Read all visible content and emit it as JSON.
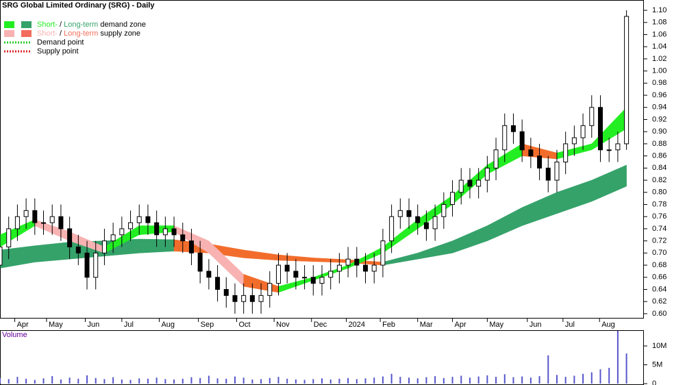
{
  "chart_data": {
    "type": "candlestick",
    "title": "SRG Global Limited Ordinary (SRG) - Daily",
    "legend": [
      {
        "short": "Short-",
        "sep": " / ",
        "long": "Long-term",
        "rest": " demand zone",
        "short_color": "#22ee22",
        "long_color": "#35a26a"
      },
      {
        "short": "Short-",
        "sep": " / ",
        "long": "Long-term",
        "rest": " supply zone",
        "short_color": "#f8b2b2",
        "long_color": "#f26d5c"
      },
      {
        "label": "Demand point",
        "color": "#22cc22"
      },
      {
        "label": "Supply point",
        "color": "#dd2222"
      }
    ],
    "volume_label": "Volume",
    "xlim": [
      0,
      74
    ],
    "xticks": [
      {
        "value": 1.7,
        "label": "Apr"
      },
      {
        "value": 5.35,
        "label": "May"
      },
      {
        "value": 9.8,
        "label": "Jun"
      },
      {
        "value": 14,
        "label": "Jul"
      },
      {
        "value": 18.3,
        "label": "Aug"
      },
      {
        "value": 22.8,
        "label": "Sep"
      },
      {
        "value": 27.2,
        "label": "Oct"
      },
      {
        "value": 31.5,
        "label": "Nov"
      },
      {
        "value": 35.8,
        "label": "Dec"
      },
      {
        "value": 39.8,
        "label": "2024"
      },
      {
        "value": 43.7,
        "label": "Feb"
      },
      {
        "value": 48,
        "label": "Mar"
      },
      {
        "value": 52,
        "label": "Apr"
      },
      {
        "value": 56,
        "label": "May"
      },
      {
        "value": 60.6,
        "label": "Jun"
      },
      {
        "value": 64.7,
        "label": "Jul"
      },
      {
        "value": 68.9,
        "label": "Aug"
      }
    ],
    "ylim": [
      0.592,
      1.117
    ],
    "yticks": [
      {
        "value": 0.6,
        "label": "0.60"
      },
      {
        "value": 0.62,
        "label": "0.62"
      },
      {
        "value": 0.64,
        "label": "0.64"
      },
      {
        "value": 0.66,
        "label": "0.66"
      },
      {
        "value": 0.68,
        "label": "0.68"
      },
      {
        "value": 0.7,
        "label": "0.70"
      },
      {
        "value": 0.72,
        "label": "0.72"
      },
      {
        "value": 0.74,
        "label": "0.74"
      },
      {
        "value": 0.76,
        "label": "0.76"
      },
      {
        "value": 0.78,
        "label": "0.78"
      },
      {
        "value": 0.8,
        "label": "0.80"
      },
      {
        "value": 0.82,
        "label": "0.82"
      },
      {
        "value": 0.84,
        "label": "0.84"
      },
      {
        "value": 0.86,
        "label": "0.86"
      },
      {
        "value": 0.88,
        "label": "0.88"
      },
      {
        "value": 0.9,
        "label": "0.90"
      },
      {
        "value": 0.92,
        "label": "0.92"
      },
      {
        "value": 0.94,
        "label": "0.94"
      },
      {
        "value": 0.96,
        "label": "0.96"
      },
      {
        "value": 0.98,
        "label": "0.98"
      },
      {
        "value": 1.0,
        "label": "1.00"
      },
      {
        "value": 1.02,
        "label": "1.02"
      },
      {
        "value": 1.04,
        "label": "1.04"
      },
      {
        "value": 1.06,
        "label": "1.06"
      },
      {
        "value": 1.08,
        "label": "1.08"
      },
      {
        "value": 1.1,
        "label": "1.10"
      }
    ],
    "x": [
      0,
      1,
      2,
      3,
      4,
      5,
      6,
      7,
      8,
      9,
      10,
      11,
      12,
      13,
      14,
      15,
      16,
      17,
      18,
      19,
      20,
      21,
      22,
      23,
      24,
      25,
      26,
      27,
      28,
      29,
      30,
      31,
      32,
      33,
      34,
      35,
      36,
      37,
      38,
      39,
      40,
      41,
      42,
      43,
      44,
      45,
      46,
      47,
      48,
      49,
      50,
      51,
      52,
      53,
      54,
      55,
      56,
      57,
      58,
      59,
      60,
      61,
      62,
      63,
      64,
      65,
      66,
      67,
      68,
      69,
      70,
      71,
      72
    ],
    "open": [
      0.68,
      0.71,
      0.74,
      0.76,
      0.77,
      0.75,
      0.75,
      0.76,
      0.74,
      0.71,
      0.7,
      0.66,
      0.7,
      0.72,
      0.73,
      0.74,
      0.75,
      0.76,
      0.75,
      0.73,
      0.74,
      0.73,
      0.72,
      0.7,
      0.67,
      0.66,
      0.64,
      0.63,
      0.62,
      0.63,
      0.62,
      0.63,
      0.65,
      0.68,
      0.67,
      0.66,
      0.66,
      0.65,
      0.66,
      0.67,
      0.68,
      0.69,
      0.68,
      0.67,
      0.68,
      0.72,
      0.76,
      0.77,
      0.76,
      0.75,
      0.74,
      0.76,
      0.78,
      0.8,
      0.82,
      0.81,
      0.82,
      0.84,
      0.87,
      0.91,
      0.9,
      0.87,
      0.86,
      0.84,
      0.82,
      0.85,
      0.88,
      0.89,
      0.91,
      0.94,
      0.87,
      0.87,
      0.88
    ],
    "high": [
      0.73,
      0.76,
      0.78,
      0.79,
      0.79,
      0.77,
      0.78,
      0.78,
      0.76,
      0.73,
      0.72,
      0.72,
      0.74,
      0.75,
      0.76,
      0.77,
      0.78,
      0.78,
      0.77,
      0.76,
      0.76,
      0.75,
      0.74,
      0.72,
      0.69,
      0.68,
      0.66,
      0.65,
      0.65,
      0.65,
      0.65,
      0.67,
      0.7,
      0.7,
      0.69,
      0.68,
      0.68,
      0.68,
      0.69,
      0.7,
      0.71,
      0.71,
      0.7,
      0.7,
      0.74,
      0.78,
      0.79,
      0.79,
      0.78,
      0.77,
      0.78,
      0.8,
      0.82,
      0.84,
      0.84,
      0.84,
      0.86,
      0.89,
      0.93,
      0.93,
      0.92,
      0.89,
      0.88,
      0.86,
      0.87,
      0.9,
      0.91,
      0.93,
      0.96,
      0.96,
      0.89,
      0.9,
      1.1
    ],
    "low": [
      0.66,
      0.69,
      0.72,
      0.74,
      0.73,
      0.73,
      0.73,
      0.72,
      0.69,
      0.68,
      0.64,
      0.64,
      0.68,
      0.7,
      0.71,
      0.72,
      0.73,
      0.73,
      0.71,
      0.71,
      0.71,
      0.7,
      0.68,
      0.65,
      0.64,
      0.62,
      0.61,
      0.6,
      0.6,
      0.6,
      0.6,
      0.61,
      0.63,
      0.65,
      0.64,
      0.64,
      0.63,
      0.63,
      0.64,
      0.65,
      0.66,
      0.66,
      0.65,
      0.65,
      0.66,
      0.7,
      0.74,
      0.74,
      0.73,
      0.72,
      0.72,
      0.74,
      0.76,
      0.78,
      0.79,
      0.79,
      0.8,
      0.82,
      0.85,
      0.88,
      0.85,
      0.84,
      0.82,
      0.8,
      0.8,
      0.83,
      0.86,
      0.87,
      0.89,
      0.85,
      0.85,
      0.85,
      0.87
    ],
    "close": [
      0.71,
      0.74,
      0.76,
      0.77,
      0.75,
      0.75,
      0.76,
      0.74,
      0.71,
      0.7,
      0.66,
      0.7,
      0.72,
      0.73,
      0.74,
      0.75,
      0.76,
      0.75,
      0.73,
      0.74,
      0.73,
      0.72,
      0.7,
      0.67,
      0.66,
      0.64,
      0.63,
      0.62,
      0.63,
      0.62,
      0.63,
      0.65,
      0.68,
      0.67,
      0.66,
      0.66,
      0.65,
      0.66,
      0.67,
      0.68,
      0.69,
      0.68,
      0.67,
      0.68,
      0.72,
      0.76,
      0.77,
      0.76,
      0.75,
      0.74,
      0.76,
      0.78,
      0.8,
      0.82,
      0.81,
      0.82,
      0.84,
      0.87,
      0.91,
      0.9,
      0.87,
      0.86,
      0.84,
      0.82,
      0.85,
      0.88,
      0.89,
      0.91,
      0.94,
      0.87,
      0.87,
      0.88,
      1.09
    ],
    "zones": [
      {
        "x": [
          0,
          4,
          8,
          12,
          16,
          20,
          24,
          28,
          32,
          36,
          40,
          44,
          48,
          52,
          56,
          60,
          64,
          68,
          72
        ],
        "upper": [
          0.705,
          0.712,
          0.718,
          0.72,
          0.723,
          0.722,
          0.715,
          0.705,
          0.697,
          0.692,
          0.689,
          0.685,
          0.7,
          0.72,
          0.745,
          0.775,
          0.8,
          0.82,
          0.845
        ],
        "lower": [
          0.675,
          0.685,
          0.69,
          0.695,
          0.7,
          0.703,
          0.7,
          0.692,
          0.688,
          0.686,
          0.684,
          0.68,
          0.69,
          0.7,
          0.72,
          0.745,
          0.765,
          0.785,
          0.81
        ],
        "colors": [
          "#35a26a",
          "#35a26a",
          "#35a26a",
          "#35a26a",
          "#35a26a",
          "#f26d2c",
          "#f26d2c",
          "#f26d2c",
          "#f26d2c",
          "#f26d2c",
          "#f26d2c",
          "#35a26a",
          "#35a26a",
          "#35a26a",
          "#35a26a",
          "#35a26a",
          "#35a26a",
          "#35a26a"
        ]
      },
      {
        "x": [
          0,
          4,
          8,
          12,
          16,
          20,
          24,
          28,
          32,
          36,
          40,
          44,
          48,
          52,
          56,
          60,
          64,
          68,
          72
        ],
        "upper": [
          0.73,
          0.755,
          0.735,
          0.71,
          0.745,
          0.745,
          0.72,
          0.665,
          0.645,
          0.66,
          0.68,
          0.71,
          0.755,
          0.795,
          0.845,
          0.88,
          0.865,
          0.88,
          0.94
        ],
        "lower": [
          0.71,
          0.745,
          0.72,
          0.7,
          0.73,
          0.735,
          0.7,
          0.645,
          0.635,
          0.655,
          0.675,
          0.7,
          0.74,
          0.78,
          0.83,
          0.86,
          0.855,
          0.87,
          0.905
        ],
        "colors": [
          "#22ee22",
          "#f8b2b2",
          "#f8b2b2",
          "#22ee22",
          "#22ee22",
          "#f8b2b2",
          "#f8b2b2",
          "#f26d2c",
          "#22ee22",
          "#22ee22",
          "#22ee22",
          "#22ee22",
          "#22ee22",
          "#22ee22",
          "#22ee22",
          "#f26d2c",
          "#22ee22",
          "#22ee22"
        ]
      }
    ],
    "volume": [
      1500000,
      1200000,
      1800000,
      1300000,
      1000000,
      1400000,
      2000000,
      1100000,
      1600000,
      1300000,
      2200000,
      1500000,
      1200000,
      1700000,
      1100000,
      1000000,
      1400000,
      1300000,
      1600000,
      1200000,
      1100000,
      1300000,
      1700000,
      1500000,
      2100000,
      1400000,
      1300000,
      1900000,
      1600000,
      1100000,
      1200000,
      1500000,
      1800000,
      1300000,
      1100000,
      1000000,
      1200000,
      1400000,
      1100000,
      1300000,
      1500000,
      1200000,
      1400000,
      1600000,
      1900000,
      2600000,
      1800000,
      1600000,
      1400000,
      1700000,
      2000000,
      1500000,
      1800000,
      2100000,
      1600000,
      1900000,
      2200000,
      1800000,
      2500000,
      1700000,
      1900000,
      1600000,
      2000000,
      7500000,
      2300000,
      1800000,
      2100000,
      2600000,
      3000000,
      3800000,
      4200000,
      14000000,
      8000000
    ],
    "volume_color": "#5555cc",
    "volume_lim": [
      0,
      14000000
    ],
    "volume_ticks": [
      {
        "value": 0,
        "label": "0"
      },
      {
        "value": 5000000,
        "label": "5M"
      },
      {
        "value": 10000000,
        "label": "10M"
      }
    ]
  }
}
